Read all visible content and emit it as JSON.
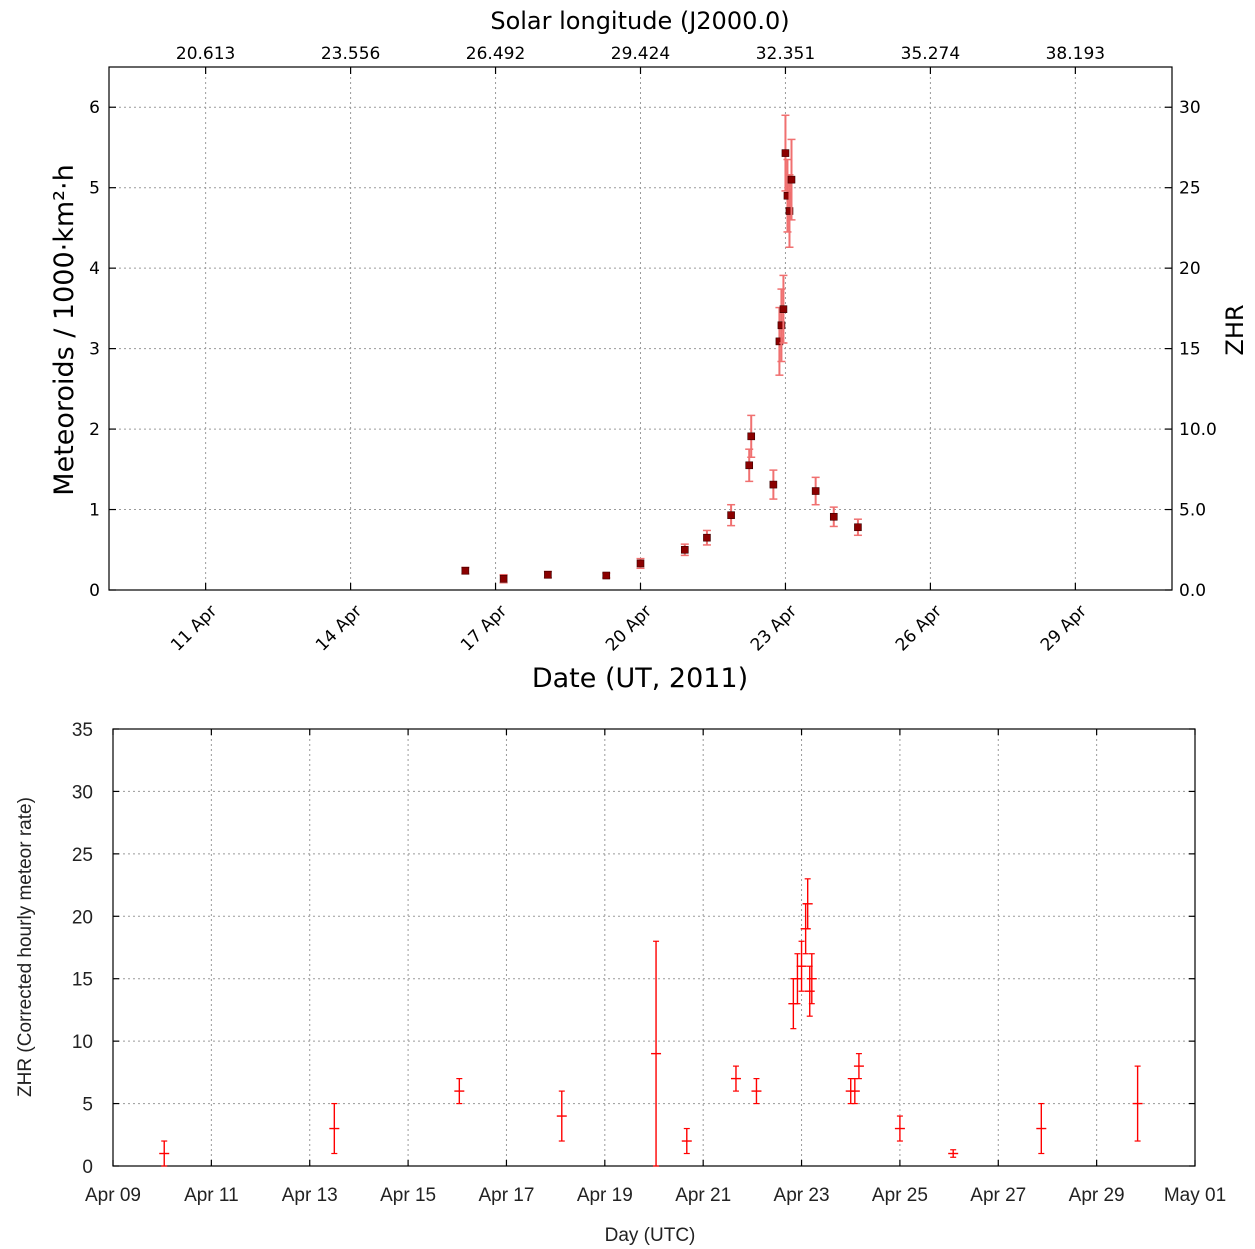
{
  "chart_data": [
    {
      "type": "scatter",
      "top_axis_label": "Solar longitude (J2000.0)",
      "top_tick_labels": [
        "20.613",
        "23.556",
        "26.492",
        "29.424",
        "32.351",
        "35.274",
        "38.193"
      ],
      "xlabel": "Date (UT, 2011)",
      "ylabel": "Meteoroids / 1000·km²·h",
      "y2label": "ZHR",
      "x_tick_labels": [
        "11 Apr",
        "14 Apr",
        "17 Apr",
        "20 Apr",
        "23 Apr",
        "26 Apr",
        "29 Apr"
      ],
      "x_tick_values": [
        "2011-04-11",
        "2011-04-14",
        "2011-04-17",
        "2011-04-20",
        "2011-04-23",
        "2011-04-26",
        "2011-04-29"
      ],
      "y_tick_labels": [
        "0",
        "1",
        "2",
        "3",
        "4",
        "5",
        "6"
      ],
      "y2_tick_labels": [
        "0.0",
        "5.0",
        "10.0",
        "15",
        "20",
        "25",
        "30"
      ],
      "xlim": [
        "2011-04-09T00:00",
        "2011-05-01T00:00"
      ],
      "ylim": [
        0,
        6.5
      ],
      "y2lim": [
        0,
        32.5
      ],
      "grid": true,
      "marker_color": "#8b0000",
      "errorbar_color": "#f07070",
      "series": [
        {
          "points": [
            {
              "x": "2011-04-16T09:00",
              "y": 0.24,
              "err": 0.04
            },
            {
              "x": "2011-04-17T04:00",
              "y": 0.14,
              "err": 0.05
            },
            {
              "x": "2011-04-18T02:00",
              "y": 0.19,
              "err": 0.04
            },
            {
              "x": "2011-04-19T07:00",
              "y": 0.18,
              "err": 0.03
            },
            {
              "x": "2011-04-20T00:00",
              "y": 0.33,
              "err": 0.06
            },
            {
              "x": "2011-04-20T22:00",
              "y": 0.5,
              "err": 0.07
            },
            {
              "x": "2011-04-21T09:00",
              "y": 0.65,
              "err": 0.09
            },
            {
              "x": "2011-04-21T21:00",
              "y": 0.93,
              "err": 0.13
            },
            {
              "x": "2011-04-22T06:00",
              "y": 1.55,
              "err": 0.2
            },
            {
              "x": "2011-04-22T07:00",
              "y": 1.91,
              "err": 0.26
            },
            {
              "x": "2011-04-22T18:00",
              "y": 1.31,
              "err": 0.18
            },
            {
              "x": "2011-04-22T21:00",
              "y": 3.09,
              "err": 0.42
            },
            {
              "x": "2011-04-22T22:00",
              "y": 3.29,
              "err": 0.45
            },
            {
              "x": "2011-04-22T23:00",
              "y": 3.49,
              "err": 0.42
            },
            {
              "x": "2011-04-23T00:00",
              "y": 5.43,
              "err": 0.47
            },
            {
              "x": "2011-04-23T01:00",
              "y": 4.9,
              "err": 0.45
            },
            {
              "x": "2011-04-23T02:00",
              "y": 4.71,
              "err": 0.45
            },
            {
              "x": "2011-04-23T03:00",
              "y": 5.1,
              "err": 0.5
            },
            {
              "x": "2011-04-23T15:00",
              "y": 1.23,
              "err": 0.17
            },
            {
              "x": "2011-04-24T00:00",
              "y": 0.91,
              "err": 0.12
            },
            {
              "x": "2011-04-24T12:00",
              "y": 0.78,
              "err": 0.1
            }
          ]
        }
      ]
    },
    {
      "type": "scatter",
      "xlabel": "Day (UTC)",
      "ylabel": "ZHR (Corrected hourly meteor rate)",
      "x_tick_labels": [
        "Apr 09",
        "Apr 11",
        "Apr 13",
        "Apr 15",
        "Apr 17",
        "Apr 19",
        "Apr 21",
        "Apr 23",
        "Apr 25",
        "Apr 27",
        "Apr 29",
        "May 01"
      ],
      "x_tick_values": [
        "2011-04-09",
        "2011-04-11",
        "2011-04-13",
        "2011-04-15",
        "2011-04-17",
        "2011-04-19",
        "2011-04-21",
        "2011-04-23",
        "2011-04-25",
        "2011-04-27",
        "2011-04-29",
        "2011-05-01"
      ],
      "y_tick_labels": [
        "0",
        "5",
        "10",
        "15",
        "20",
        "25",
        "30",
        "35"
      ],
      "xlim": [
        "2011-04-09T00:00",
        "2011-05-01T00:00"
      ],
      "ylim": [
        0,
        35
      ],
      "grid": true,
      "marker_color": "#ff0000",
      "series": [
        {
          "points": [
            {
              "x": "2011-04-10T01:00",
              "y": 1,
              "err": 1
            },
            {
              "x": "2011-04-13T12:00",
              "y": 3,
              "err": 2
            },
            {
              "x": "2011-04-16T01:00",
              "y": 6,
              "err": 1
            },
            {
              "x": "2011-04-18T03:00",
              "y": 4,
              "err": 2
            },
            {
              "x": "2011-04-20T01:00",
              "y": 9,
              "err": 9
            },
            {
              "x": "2011-04-20T16:00",
              "y": 2,
              "err": 1
            },
            {
              "x": "2011-04-21T16:00",
              "y": 7,
              "err": 1
            },
            {
              "x": "2011-04-22T02:00",
              "y": 6,
              "err": 1
            },
            {
              "x": "2011-04-22T20:00",
              "y": 13,
              "err": 2
            },
            {
              "x": "2011-04-22T22:00",
              "y": 15,
              "err": 2
            },
            {
              "x": "2011-04-23T00:00",
              "y": 16,
              "err": 2
            },
            {
              "x": "2011-04-23T02:00",
              "y": 19,
              "err": 2
            },
            {
              "x": "2011-04-23T03:00",
              "y": 21,
              "err": 2
            },
            {
              "x": "2011-04-23T04:00",
              "y": 14,
              "err": 2
            },
            {
              "x": "2011-04-23T05:00",
              "y": 15,
              "err": 2
            },
            {
              "x": "2011-04-24T00:00",
              "y": 6,
              "err": 1
            },
            {
              "x": "2011-04-24T02:00",
              "y": 6,
              "err": 1
            },
            {
              "x": "2011-04-24T04:00",
              "y": 8,
              "err": 1
            },
            {
              "x": "2011-04-25T00:00",
              "y": 3,
              "err": 1
            },
            {
              "x": "2011-04-26T02:00",
              "y": 1,
              "err": 0.3
            },
            {
              "x": "2011-04-27T21:00",
              "y": 3,
              "err": 2
            },
            {
              "x": "2011-04-29T20:00",
              "y": 5,
              "err": 3
            }
          ]
        }
      ]
    }
  ]
}
